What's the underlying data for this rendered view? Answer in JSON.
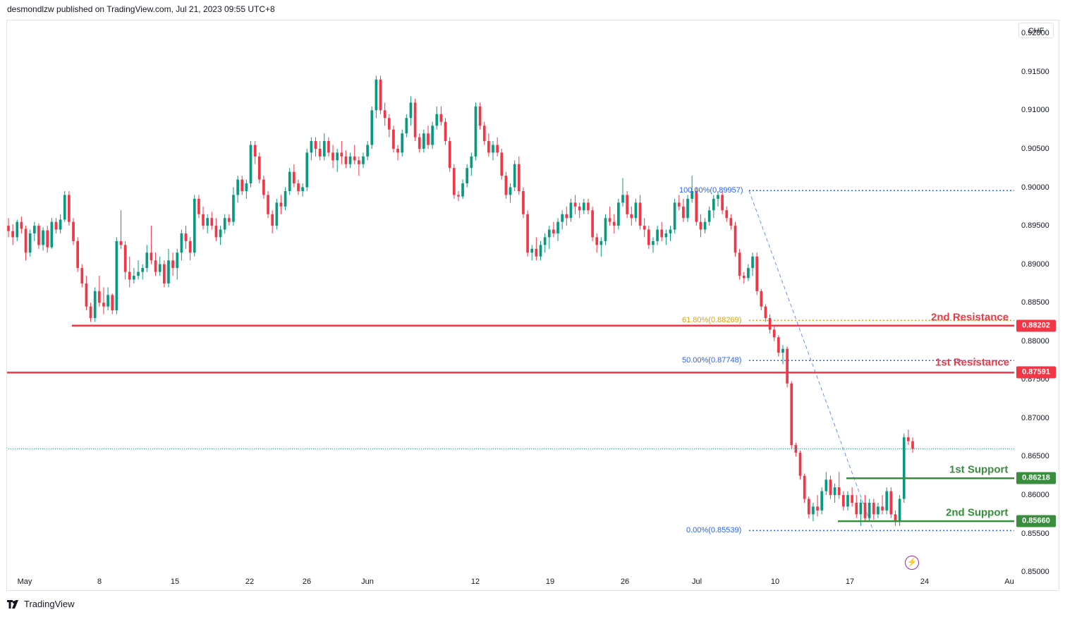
{
  "header": {
    "text": "desmondlzw published on TradingView.com, Jul 21, 2023 09:55 UTC+8"
  },
  "footer": {
    "brand": "TradingView"
  },
  "currency": "CHF",
  "colors": {
    "up": "#089981",
    "down": "#f23645",
    "resistance": "#f23645",
    "support": "#388e3c",
    "fib_blue": "#2962ff",
    "fib_gold": "#d8a31a"
  },
  "icons": {
    "logo": "tradingview-logo-icon",
    "lightning": "lightning-icon"
  },
  "chart_data": {
    "type": "candlestick",
    "symbol_currency": "CHF",
    "ylim": [
      0.848,
      0.9225
    ],
    "y_ticks": [
      "0.92000",
      "0.91500",
      "0.91000",
      "0.90500",
      "0.90000",
      "0.89500",
      "0.89000",
      "0.88500",
      "0.88000",
      "0.87500",
      "0.87000",
      "0.86500",
      "0.86000",
      "0.85500",
      "0.85000"
    ],
    "x_ticks": [
      "May",
      "8",
      "15",
      "22",
      "26",
      "Jun",
      "12",
      "19",
      "26",
      "Jul",
      "10",
      "17",
      "24",
      "Au"
    ],
    "levels": [
      {
        "name": "2nd Resistance",
        "value": 0.88202,
        "label": "0.88202",
        "kind": "resistance"
      },
      {
        "name": "1st Resistance",
        "value": 0.87591,
        "label": "0.87591",
        "kind": "resistance"
      },
      {
        "name": "1st Support",
        "value": 0.86218,
        "label": "0.86218",
        "kind": "support"
      },
      {
        "name": "2nd Support",
        "value": 0.8566,
        "label": "0.85660",
        "kind": "support"
      }
    ],
    "fibonacci": [
      {
        "label": "100.00%(0.89957)",
        "value": 0.89957
      },
      {
        "label": "61.80%(0.88269)",
        "value": 0.88269
      },
      {
        "label": "50.00%(0.87748)",
        "value": 0.87748
      },
      {
        "label": "0.00%(0.85539)",
        "value": 0.85539
      }
    ],
    "last_price": 0.866,
    "candles": [
      [
        0.895,
        0.896,
        0.8935,
        0.8943
      ],
      [
        0.8943,
        0.8952,
        0.8925,
        0.8935
      ],
      [
        0.8935,
        0.8958,
        0.893,
        0.8955
      ],
      [
        0.8955,
        0.8962,
        0.894,
        0.8946
      ],
      [
        0.8946,
        0.895,
        0.8905,
        0.8915
      ],
      [
        0.8915,
        0.8945,
        0.891,
        0.894
      ],
      [
        0.894,
        0.8955,
        0.893,
        0.895
      ],
      [
        0.895,
        0.8953,
        0.892,
        0.8925
      ],
      [
        0.8925,
        0.8948,
        0.8918,
        0.8944
      ],
      [
        0.8944,
        0.895,
        0.8915,
        0.8922
      ],
      [
        0.8922,
        0.896,
        0.892,
        0.8955
      ],
      [
        0.8955,
        0.896,
        0.894,
        0.8945
      ],
      [
        0.8945,
        0.8965,
        0.894,
        0.8958
      ],
      [
        0.8958,
        0.8995,
        0.8955,
        0.899
      ],
      [
        0.899,
        0.8995,
        0.895,
        0.8955
      ],
      [
        0.8955,
        0.896,
        0.8925,
        0.893
      ],
      [
        0.893,
        0.8935,
        0.889,
        0.8895
      ],
      [
        0.8895,
        0.89,
        0.887,
        0.8875
      ],
      [
        0.8875,
        0.8885,
        0.884,
        0.8845
      ],
      [
        0.8845,
        0.885,
        0.8825,
        0.883
      ],
      [
        0.883,
        0.887,
        0.8825,
        0.8865
      ],
      [
        0.8865,
        0.8885,
        0.8845,
        0.885
      ],
      [
        0.885,
        0.887,
        0.8835,
        0.8845
      ],
      [
        0.8845,
        0.887,
        0.884,
        0.886
      ],
      [
        0.886,
        0.8862,
        0.8835,
        0.884
      ],
      [
        0.884,
        0.8935,
        0.8835,
        0.893
      ],
      [
        0.893,
        0.897,
        0.892,
        0.8925
      ],
      [
        0.8925,
        0.893,
        0.888,
        0.889
      ],
      [
        0.889,
        0.891,
        0.887,
        0.888
      ],
      [
        0.888,
        0.8895,
        0.8875,
        0.8885
      ],
      [
        0.8885,
        0.8905,
        0.888,
        0.889
      ],
      [
        0.889,
        0.89,
        0.888,
        0.8895
      ],
      [
        0.8895,
        0.8925,
        0.889,
        0.8915
      ],
      [
        0.8915,
        0.895,
        0.89,
        0.8905
      ],
      [
        0.8905,
        0.8915,
        0.8885,
        0.889
      ],
      [
        0.889,
        0.891,
        0.8885,
        0.89
      ],
      [
        0.89,
        0.8905,
        0.887,
        0.8875
      ],
      [
        0.8875,
        0.892,
        0.887,
        0.8905
      ],
      [
        0.8905,
        0.8915,
        0.8885,
        0.8895
      ],
      [
        0.8895,
        0.892,
        0.888,
        0.8915
      ],
      [
        0.8915,
        0.8945,
        0.8905,
        0.894
      ],
      [
        0.894,
        0.895,
        0.892,
        0.893
      ],
      [
        0.893,
        0.8935,
        0.8905,
        0.8915
      ],
      [
        0.8915,
        0.899,
        0.891,
        0.8985
      ],
      [
        0.8985,
        0.899,
        0.896,
        0.8965
      ],
      [
        0.8965,
        0.8975,
        0.8945,
        0.895
      ],
      [
        0.895,
        0.8965,
        0.894,
        0.896
      ],
      [
        0.896,
        0.8968,
        0.8945,
        0.895
      ],
      [
        0.895,
        0.896,
        0.893,
        0.8935
      ],
      [
        0.8935,
        0.895,
        0.8925,
        0.8945
      ],
      [
        0.8945,
        0.8965,
        0.894,
        0.896
      ],
      [
        0.896,
        0.8965,
        0.895,
        0.8955
      ],
      [
        0.8955,
        0.9,
        0.895,
        0.899
      ],
      [
        0.899,
        0.9015,
        0.898,
        0.901
      ],
      [
        0.901,
        0.9015,
        0.899,
        0.8995
      ],
      [
        0.8995,
        0.901,
        0.8985,
        0.9005
      ],
      [
        0.9005,
        0.906,
        0.9,
        0.9055
      ],
      [
        0.9055,
        0.906,
        0.903,
        0.904
      ],
      [
        0.904,
        0.9045,
        0.9005,
        0.901
      ],
      [
        0.901,
        0.9015,
        0.8985,
        0.899
      ],
      [
        0.899,
        0.8995,
        0.896,
        0.8965
      ],
      [
        0.8965,
        0.897,
        0.894,
        0.895
      ],
      [
        0.895,
        0.8985,
        0.8945,
        0.898
      ],
      [
        0.898,
        0.899,
        0.8965,
        0.8975
      ],
      [
        0.8975,
        0.9,
        0.897,
        0.8995
      ],
      [
        0.8995,
        0.9025,
        0.899,
        0.902
      ],
      [
        0.902,
        0.903,
        0.9,
        0.9005
      ],
      [
        0.9005,
        0.901,
        0.899,
        0.8995
      ],
      [
        0.8995,
        0.9005,
        0.8988,
        0.9
      ],
      [
        0.9,
        0.905,
        0.8995,
        0.9045
      ],
      [
        0.9045,
        0.9065,
        0.9035,
        0.906
      ],
      [
        0.906,
        0.9065,
        0.904,
        0.905
      ],
      [
        0.905,
        0.906,
        0.9035,
        0.904
      ],
      [
        0.904,
        0.907,
        0.9035,
        0.906
      ],
      [
        0.906,
        0.9065,
        0.904,
        0.9045
      ],
      [
        0.9045,
        0.9055,
        0.9025,
        0.9035
      ],
      [
        0.9035,
        0.905,
        0.902,
        0.9045
      ],
      [
        0.9045,
        0.906,
        0.903,
        0.904
      ],
      [
        0.904,
        0.9048,
        0.9025,
        0.903
      ],
      [
        0.903,
        0.9045,
        0.9025,
        0.904
      ],
      [
        0.904,
        0.9055,
        0.903,
        0.9035
      ],
      [
        0.9035,
        0.904,
        0.9015,
        0.903
      ],
      [
        0.903,
        0.9045,
        0.9025,
        0.904
      ],
      [
        0.904,
        0.906,
        0.9035,
        0.9055
      ],
      [
        0.9055,
        0.9105,
        0.905,
        0.91
      ],
      [
        0.91,
        0.9145,
        0.909,
        0.914
      ],
      [
        0.914,
        0.9145,
        0.9095,
        0.91
      ],
      [
        0.91,
        0.911,
        0.908,
        0.909
      ],
      [
        0.909,
        0.9095,
        0.9065,
        0.9075
      ],
      [
        0.9075,
        0.908,
        0.9045,
        0.905
      ],
      [
        0.905,
        0.9055,
        0.9035,
        0.9045
      ],
      [
        0.9045,
        0.9075,
        0.904,
        0.907
      ],
      [
        0.907,
        0.9095,
        0.9065,
        0.909
      ],
      [
        0.909,
        0.9118,
        0.908,
        0.911
      ],
      [
        0.911,
        0.9115,
        0.906,
        0.9065
      ],
      [
        0.9065,
        0.907,
        0.9045,
        0.905
      ],
      [
        0.905,
        0.9075,
        0.9045,
        0.907
      ],
      [
        0.907,
        0.908,
        0.905,
        0.9055
      ],
      [
        0.9055,
        0.9085,
        0.905,
        0.908
      ],
      [
        0.908,
        0.9105,
        0.9075,
        0.9095
      ],
      [
        0.9095,
        0.9105,
        0.908,
        0.9085
      ],
      [
        0.9085,
        0.909,
        0.9055,
        0.906
      ],
      [
        0.906,
        0.9065,
        0.902,
        0.9025
      ],
      [
        0.9025,
        0.903,
        0.8985,
        0.899
      ],
      [
        0.899,
        0.8995,
        0.8982,
        0.8988
      ],
      [
        0.8988,
        0.901,
        0.8985,
        0.9005
      ],
      [
        0.9005,
        0.903,
        0.9,
        0.9025
      ],
      [
        0.9025,
        0.9045,
        0.9015,
        0.904
      ],
      [
        0.904,
        0.911,
        0.9035,
        0.9105
      ],
      [
        0.9105,
        0.911,
        0.9075,
        0.908
      ],
      [
        0.908,
        0.9085,
        0.9055,
        0.906
      ],
      [
        0.906,
        0.907,
        0.904,
        0.9045
      ],
      [
        0.9045,
        0.906,
        0.9035,
        0.9055
      ],
      [
        0.9055,
        0.9065,
        0.904,
        0.9045
      ],
      [
        0.9045,
        0.905,
        0.901,
        0.9015
      ],
      [
        0.9015,
        0.902,
        0.8985,
        0.899
      ],
      [
        0.899,
        0.9005,
        0.898,
        0.9
      ],
      [
        0.9,
        0.9035,
        0.8995,
        0.903
      ],
      [
        0.903,
        0.904,
        0.899,
        0.8995
      ],
      [
        0.8995,
        0.9,
        0.896,
        0.8965
      ],
      [
        0.8965,
        0.897,
        0.891,
        0.8915
      ],
      [
        0.8915,
        0.8925,
        0.8905,
        0.892
      ],
      [
        0.892,
        0.8935,
        0.8905,
        0.891
      ],
      [
        0.891,
        0.893,
        0.8905,
        0.8925
      ],
      [
        0.8925,
        0.894,
        0.8915,
        0.8935
      ],
      [
        0.8935,
        0.895,
        0.892,
        0.8945
      ],
      [
        0.8945,
        0.8955,
        0.8935,
        0.894
      ],
      [
        0.894,
        0.896,
        0.893,
        0.8955
      ],
      [
        0.8955,
        0.897,
        0.8945,
        0.8965
      ],
      [
        0.8965,
        0.8975,
        0.895,
        0.896
      ],
      [
        0.896,
        0.8985,
        0.8955,
        0.898
      ],
      [
        0.898,
        0.899,
        0.8965,
        0.8975
      ],
      [
        0.8975,
        0.898,
        0.896,
        0.897
      ],
      [
        0.897,
        0.8985,
        0.8965,
        0.898
      ],
      [
        0.898,
        0.8985,
        0.8965,
        0.897
      ],
      [
        0.897,
        0.8975,
        0.893,
        0.8935
      ],
      [
        0.8935,
        0.894,
        0.8915,
        0.8925
      ],
      [
        0.8925,
        0.8935,
        0.891,
        0.893
      ],
      [
        0.893,
        0.8965,
        0.8925,
        0.896
      ],
      [
        0.896,
        0.8975,
        0.895,
        0.8955
      ],
      [
        0.8955,
        0.8965,
        0.894,
        0.895
      ],
      [
        0.895,
        0.8985,
        0.8945,
        0.898
      ],
      [
        0.898,
        0.9012,
        0.8975,
        0.899
      ],
      [
        0.899,
        0.8995,
        0.896,
        0.8965
      ],
      [
        0.8965,
        0.8975,
        0.895,
        0.896
      ],
      [
        0.896,
        0.8985,
        0.8955,
        0.898
      ],
      [
        0.898,
        0.899,
        0.8945,
        0.895
      ],
      [
        0.895,
        0.896,
        0.8935,
        0.8945
      ],
      [
        0.8945,
        0.895,
        0.892,
        0.8925
      ],
      [
        0.8925,
        0.8935,
        0.8915,
        0.893
      ],
      [
        0.893,
        0.895,
        0.8925,
        0.8945
      ],
      [
        0.8945,
        0.8955,
        0.893,
        0.8935
      ],
      [
        0.8935,
        0.8945,
        0.8925,
        0.894
      ],
      [
        0.894,
        0.895,
        0.893,
        0.8945
      ],
      [
        0.8945,
        0.8985,
        0.894,
        0.898
      ],
      [
        0.898,
        0.899,
        0.897,
        0.8975
      ],
      [
        0.8975,
        0.8985,
        0.8955,
        0.896
      ],
      [
        0.896,
        0.899,
        0.8955,
        0.8985
      ],
      [
        0.8985,
        0.9015,
        0.898,
        0.8995
      ],
      [
        0.8995,
        0.9,
        0.895,
        0.8955
      ],
      [
        0.8955,
        0.8965,
        0.8935,
        0.8945
      ],
      [
        0.8945,
        0.896,
        0.894,
        0.8955
      ],
      [
        0.8955,
        0.8975,
        0.895,
        0.897
      ],
      [
        0.897,
        0.899,
        0.896,
        0.8985
      ],
      [
        0.8985,
        0.8995,
        0.8975,
        0.899
      ],
      [
        0.899,
        0.8995,
        0.8965,
        0.897
      ],
      [
        0.897,
        0.8975,
        0.8955,
        0.896
      ],
      [
        0.896,
        0.8965,
        0.8945,
        0.895
      ],
      [
        0.895,
        0.8955,
        0.891,
        0.8915
      ],
      [
        0.8915,
        0.892,
        0.888,
        0.8885
      ],
      [
        0.8885,
        0.889,
        0.8875,
        0.8882
      ],
      [
        0.8882,
        0.89,
        0.8878,
        0.8895
      ],
      [
        0.8895,
        0.8915,
        0.8885,
        0.891
      ],
      [
        0.891,
        0.8915,
        0.886,
        0.8865
      ],
      [
        0.8865,
        0.8868,
        0.884,
        0.8845
      ],
      [
        0.8845,
        0.8848,
        0.8825,
        0.883
      ],
      [
        0.883,
        0.8835,
        0.881,
        0.8815
      ],
      [
        0.8815,
        0.882,
        0.88,
        0.8805
      ],
      [
        0.8805,
        0.8808,
        0.878,
        0.8785
      ],
      [
        0.8785,
        0.8795,
        0.877,
        0.879
      ],
      [
        0.879,
        0.8793,
        0.874,
        0.8745
      ],
      [
        0.8745,
        0.8748,
        0.866,
        0.8665
      ],
      [
        0.8665,
        0.8668,
        0.865,
        0.8655
      ],
      [
        0.8655,
        0.8658,
        0.862,
        0.8625
      ],
      [
        0.8625,
        0.8628,
        0.859,
        0.8595
      ],
      [
        0.8595,
        0.8598,
        0.857,
        0.8575
      ],
      [
        0.8575,
        0.859,
        0.8566,
        0.8585
      ],
      [
        0.8585,
        0.86,
        0.8572,
        0.858
      ],
      [
        0.858,
        0.861,
        0.8575,
        0.8605
      ],
      [
        0.8605,
        0.863,
        0.86,
        0.862
      ],
      [
        0.862,
        0.8625,
        0.8595,
        0.86
      ],
      [
        0.86,
        0.8615,
        0.859,
        0.861
      ],
      [
        0.861,
        0.863,
        0.8595,
        0.86
      ],
      [
        0.86,
        0.8605,
        0.858,
        0.8585
      ],
      [
        0.8585,
        0.8605,
        0.858,
        0.86
      ],
      [
        0.86,
        0.861,
        0.8585,
        0.859
      ],
      [
        0.859,
        0.86,
        0.857,
        0.8575
      ],
      [
        0.8575,
        0.8595,
        0.856,
        0.859
      ],
      [
        0.859,
        0.86,
        0.8565,
        0.857
      ],
      [
        0.857,
        0.8595,
        0.8565,
        0.859
      ],
      [
        0.859,
        0.8595,
        0.8568,
        0.8575
      ],
      [
        0.8575,
        0.859,
        0.857,
        0.8585
      ],
      [
        0.8585,
        0.86,
        0.8575,
        0.858
      ],
      [
        0.858,
        0.861,
        0.8575,
        0.8605
      ],
      [
        0.8605,
        0.861,
        0.857,
        0.8575
      ],
      [
        0.8575,
        0.858,
        0.856,
        0.8565
      ],
      [
        0.8565,
        0.86,
        0.856,
        0.8595
      ],
      [
        0.8595,
        0.868,
        0.859,
        0.8675
      ],
      [
        0.8675,
        0.8685,
        0.8665,
        0.867
      ],
      [
        0.867,
        0.8675,
        0.8655,
        0.866
      ]
    ]
  }
}
